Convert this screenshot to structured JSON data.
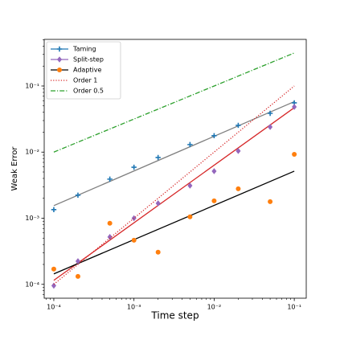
{
  "chart_data": {
    "type": "line",
    "xlabel": "Time step",
    "ylabel": "Weak Error",
    "xscale": "log",
    "yscale": "log",
    "xlim": [
      7.59e-05,
      0.141
    ],
    "ylim": [
      6.17e-05,
      0.507
    ],
    "xticks": [
      {
        "value": 0.0001,
        "label": "10⁻⁴"
      },
      {
        "value": 0.001,
        "label": "10⁻³"
      },
      {
        "value": 0.01,
        "label": "10⁻²"
      },
      {
        "value": 0.1,
        "label": "10⁻¹"
      }
    ],
    "yticks": [
      {
        "value": 0.0001,
        "label": "10⁻⁴"
      },
      {
        "value": 0.001,
        "label": "10⁻³"
      },
      {
        "value": 0.01,
        "label": "10⁻²"
      },
      {
        "value": 0.1,
        "label": "10⁻¹"
      }
    ],
    "legend": "upper left",
    "x": [
      0.0001,
      0.0002,
      0.0005,
      0.001,
      0.002,
      0.005,
      0.01,
      0.02,
      0.05,
      0.1
    ],
    "series": [
      {
        "name": "Taming",
        "color": "#1f77b4",
        "line_color": "#1f77b4",
        "marker": "plus",
        "values": [
          0.00135,
          0.00223,
          0.0039,
          0.0059,
          0.0083,
          0.013,
          0.0177,
          0.0254,
          0.0386,
          0.0556
        ]
      },
      {
        "name": "Split-step",
        "color": "#9467bd",
        "line_color": "#9467bd",
        "marker": "diamond",
        "values": [
          9.55e-05,
          0.000224,
          0.00052,
          0.001,
          0.00168,
          0.00311,
          0.00515,
          0.0104,
          0.024,
          0.0483
        ]
      },
      {
        "name": "Adaptive",
        "color": "#ff7f0e",
        "line_color": "#000000",
        "marker": "circle",
        "values": [
          0.00017,
          0.000132,
          0.00084,
          0.000465,
          0.000306,
          0.00105,
          0.00183,
          0.00279,
          0.00178,
          0.00927
        ]
      },
      {
        "name": "Order 1",
        "color": "#d62728",
        "linestyle": "dotted",
        "x": [
          0.0001,
          0.1
        ],
        "values": [
          0.0001,
          0.1
        ]
      },
      {
        "name": "Order 0.5",
        "color": "#2ca02c",
        "linestyle": "dashdot",
        "x": [
          0.0001,
          0.1
        ],
        "values": [
          0.01,
          0.316
        ]
      }
    ],
    "fits": [
      {
        "color": "#808080",
        "x": [
          0.0001,
          0.1
        ],
        "values": [
          0.00155,
          0.058
        ]
      },
      {
        "color": "#d62728",
        "x": [
          0.0001,
          0.1
        ],
        "values": [
          0.000115,
          0.047
        ]
      },
      {
        "color": "#000000",
        "x": [
          0.0001,
          0.1
        ],
        "values": [
          0.000144,
          0.00515
        ]
      }
    ]
  }
}
